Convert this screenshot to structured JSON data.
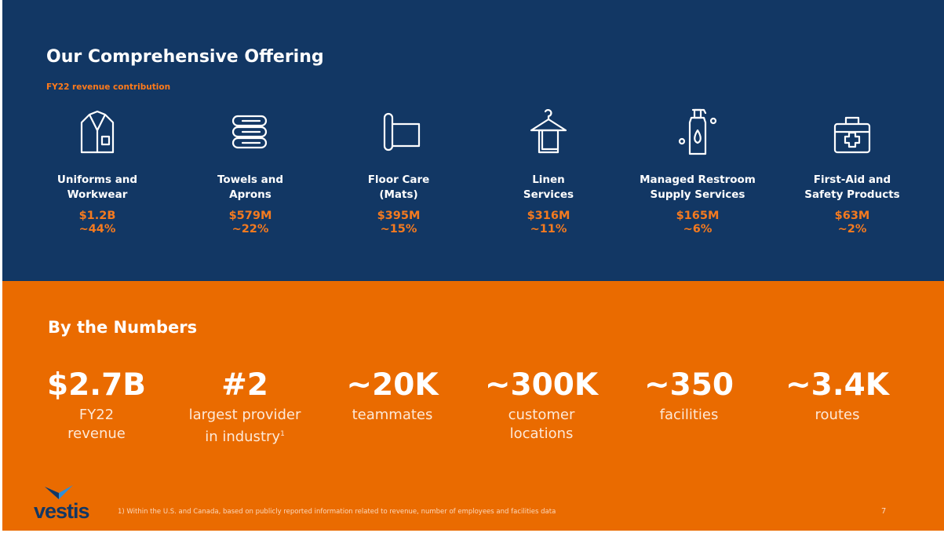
{
  "offering": {
    "title": "Our Comprehensive Offering",
    "subtitle": "FY22 revenue contribution",
    "items": [
      {
        "icon": "uniform-icon",
        "label_line1": "Uniforms and",
        "label_line2": "Workwear",
        "amount": "$1.2B",
        "share": "~44%"
      },
      {
        "icon": "towels-icon",
        "label_line1": "Towels and",
        "label_line2": "Aprons",
        "amount": "$579M",
        "share": "~22%"
      },
      {
        "icon": "floor-mat-icon",
        "label_line1": "Floor Care",
        "label_line2": "(Mats)",
        "amount": "$395M",
        "share": "~15%"
      },
      {
        "icon": "linen-hanger-icon",
        "label_line1": "Linen",
        "label_line2": "Services",
        "amount": "$316M",
        "share": "~11%"
      },
      {
        "icon": "soap-dispenser-icon",
        "label_line1": "Managed Restroom",
        "label_line2": "Supply Services",
        "amount": "$165M",
        "share": "~6%"
      },
      {
        "icon": "first-aid-kit-icon",
        "label_line1": "First-Aid and",
        "label_line2": "Safety Products",
        "amount": "$63M",
        "share": "~2%"
      }
    ]
  },
  "numbers": {
    "title": "By the Numbers",
    "stats": [
      {
        "value": "$2.7B",
        "line1": "FY22",
        "line2": "revenue"
      },
      {
        "value": "#2",
        "line1": "largest provider",
        "line2": "in industry",
        "footnote_mark": "1"
      },
      {
        "value": "~20K",
        "line1": "teammates",
        "line2": ""
      },
      {
        "value": "~300K",
        "line1": "customer",
        "line2": "locations"
      },
      {
        "value": "~350",
        "line1": "facilities",
        "line2": ""
      },
      {
        "value": "~3.4K",
        "line1": "routes",
        "line2": ""
      }
    ]
  },
  "footer": {
    "logo_text": "vestis",
    "footnote": "1) Within the U.S. and Canada, based on publicly reported information related to revenue, number of employees and facilities data",
    "page_number": "7"
  },
  "colors": {
    "navy": "#123764",
    "orange": "#ea6b00",
    "accent_orange": "#f47a1f",
    "logo_blue": "#2f8fd8"
  }
}
